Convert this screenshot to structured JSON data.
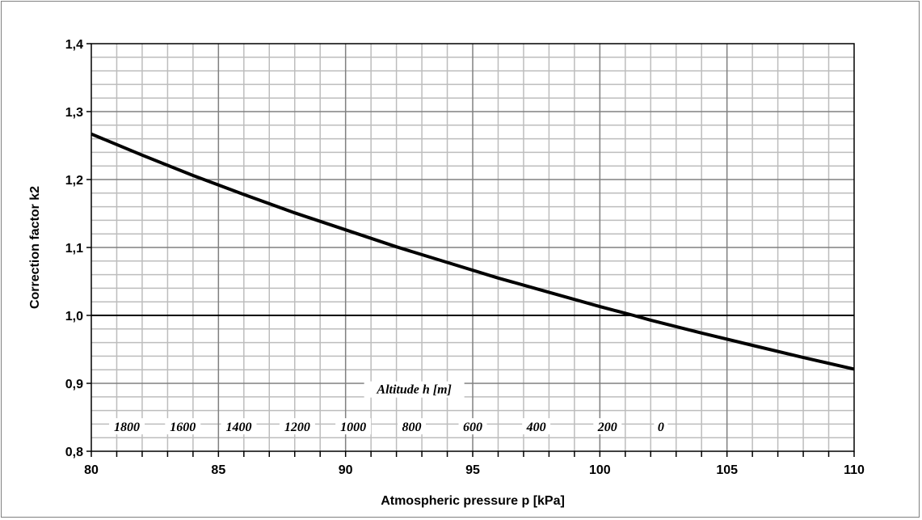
{
  "chart_data": {
    "type": "line",
    "xlabel": "Atmospheric pressure p [kPa]",
    "ylabel": "Correction factor k2",
    "xlim": [
      80,
      110
    ],
    "ylim": [
      0.8,
      1.4
    ],
    "x_ticks": [
      "80",
      "85",
      "90",
      "95",
      "100",
      "105",
      "110"
    ],
    "y_ticks": [
      "0,8",
      "0,9",
      "1,0",
      "1,1",
      "1,2",
      "1,3",
      "1,4"
    ],
    "grid": true,
    "series": [
      {
        "color": "#000000",
        "x": [
          80,
          82,
          84,
          86,
          88,
          90,
          92,
          94,
          96,
          98,
          100,
          101.325,
          102,
          104,
          106,
          108,
          110
        ],
        "y": [
          1.267,
          1.236,
          1.206,
          1.178,
          1.151,
          1.126,
          1.101,
          1.078,
          1.055,
          1.034,
          1.013,
          1.0,
          0.993,
          0.974,
          0.956,
          0.938,
          0.921
        ]
      }
    ],
    "secondary_axis": {
      "title": "Altitude h [m]",
      "labels": [
        "1800",
        "1600",
        "1400",
        "1200",
        "1000",
        "800",
        "600",
        "400",
        "200",
        "0"
      ]
    }
  }
}
